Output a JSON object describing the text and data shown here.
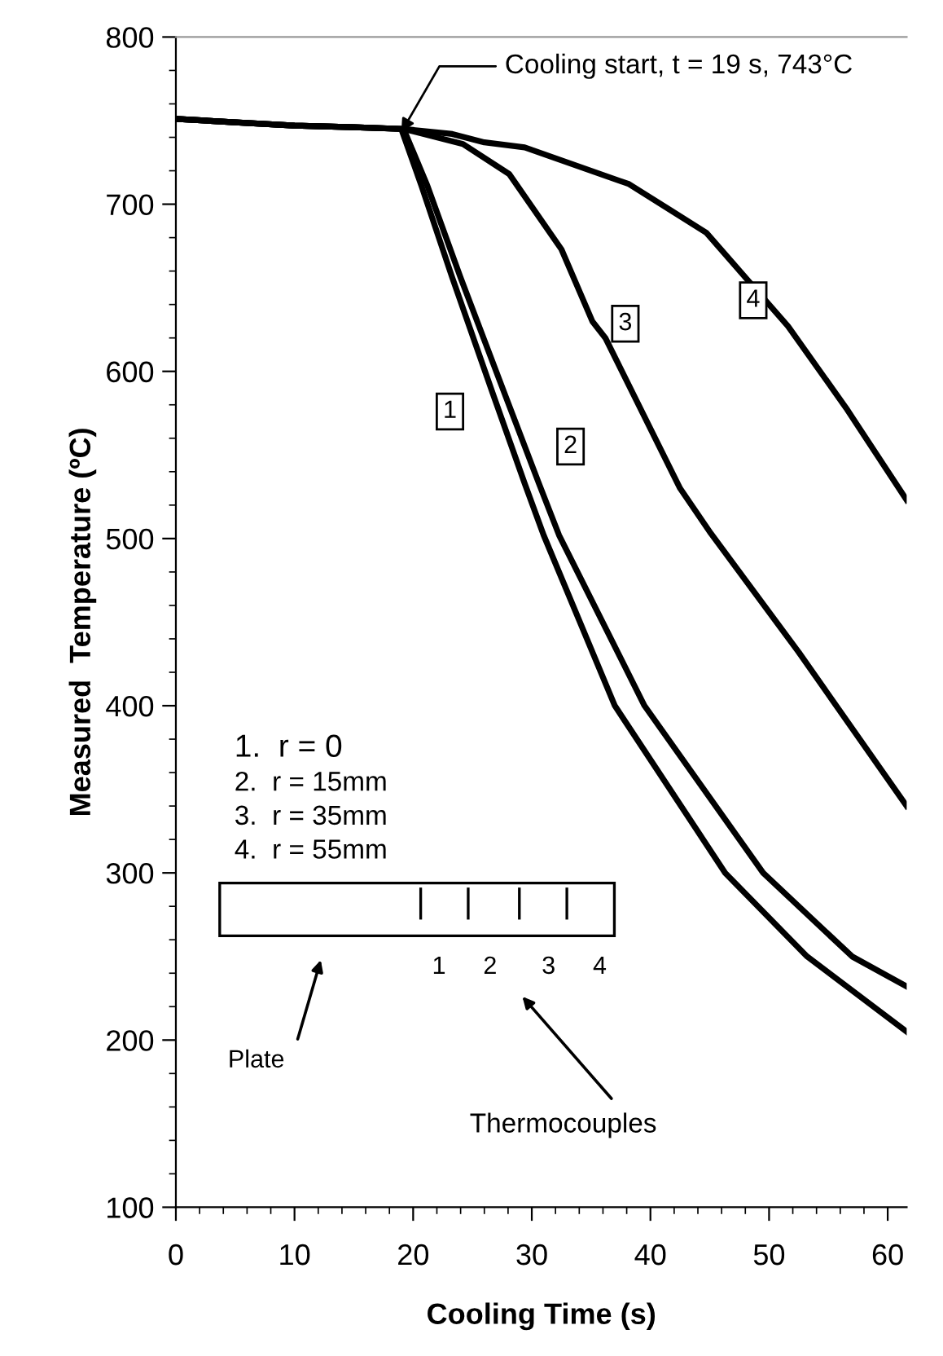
{
  "chart_data": {
    "type": "line",
    "xlabel": "Cooling Time (s)",
    "ylabel": "Measured  Temperature (ºC)",
    "xlim": [
      0,
      61.6
    ],
    "xticks": [
      0,
      10,
      20,
      30,
      40,
      50,
      60
    ],
    "ylim": [
      100,
      800
    ],
    "yticks": [
      100,
      200,
      300,
      400,
      500,
      600,
      700,
      800
    ],
    "grid": false,
    "legend": false,
    "marker": "none",
    "line_style": "solid",
    "series": [
      {
        "name": "1",
        "color": "#000000",
        "x": [
          0,
          5,
          10,
          15,
          19,
          20.7,
          23.3,
          26.8,
          29.4,
          31.0,
          37.0,
          46.3,
          53.2,
          61.6
        ],
        "values": [
          751,
          749,
          747,
          746,
          745,
          711,
          656,
          585,
          533,
          502,
          400,
          300,
          250,
          205
        ]
      },
      {
        "name": "2",
        "color": "#000000",
        "x": [
          0,
          5,
          10,
          15,
          19.2,
          21.2,
          24.0,
          27.8,
          30.6,
          32.3,
          39.5,
          49.5,
          57.0,
          61.6
        ],
        "values": [
          751,
          749,
          747,
          746,
          745,
          711,
          656,
          585,
          533,
          502,
          400,
          300,
          250,
          232
        ]
      },
      {
        "name": "3",
        "color": "#000000",
        "x": [
          0,
          5,
          10,
          15,
          19.2,
          24.2,
          28.1,
          32.5,
          35.1,
          36.2,
          42.5,
          45.1,
          52.5,
          61.6
        ],
        "values": [
          751,
          749,
          747,
          746,
          745,
          736,
          718,
          673,
          630,
          620,
          530,
          503,
          432,
          340
        ]
      },
      {
        "name": "4",
        "color": "#000000",
        "x": [
          0,
          5,
          10,
          15,
          19.2,
          23.3,
          26.0,
          29.4,
          38.2,
          44.7,
          51.6,
          56.5,
          61.6
        ],
        "values": [
          751,
          749,
          747,
          746,
          745,
          742,
          737,
          734,
          712,
          683,
          627,
          578,
          523
        ]
      }
    ],
    "annotations": [
      {
        "text": "Cooling start, t = 19 s, 743°C",
        "x": 19,
        "y": 743
      },
      "1.  r = 0",
      "2.  r = 15mm",
      "3.  r = 35mm",
      "4.  r = 55mm",
      "1",
      "2",
      "3",
      "4",
      "Plate",
      "Thermocouples"
    ]
  }
}
